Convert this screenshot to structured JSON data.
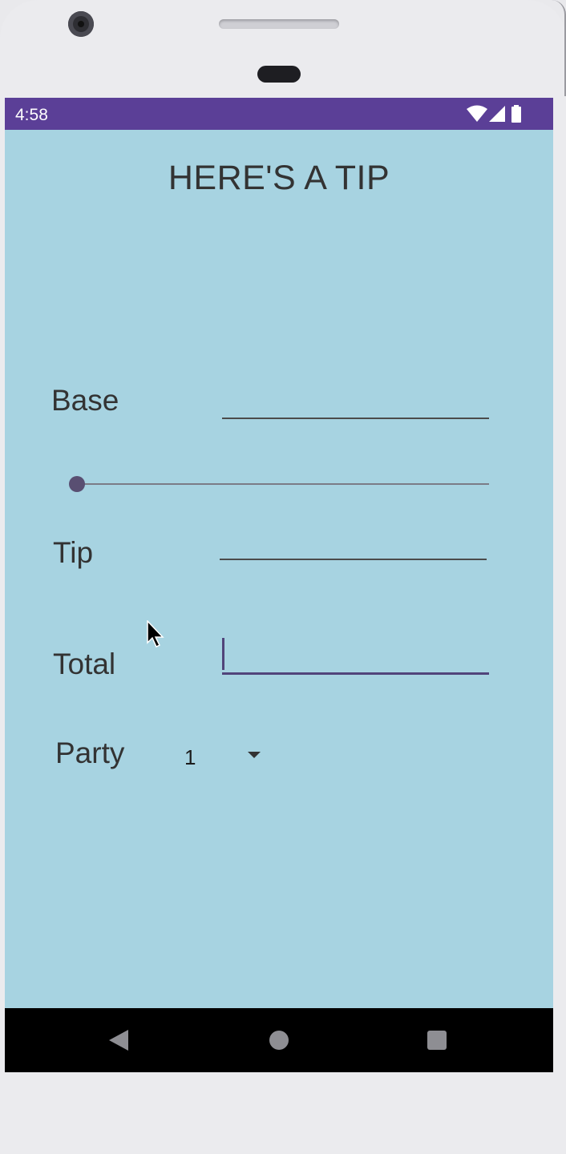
{
  "status_bar": {
    "time": "4:58",
    "icons": [
      "wifi-icon",
      "cell-signal-icon",
      "battery-icon"
    ],
    "color": "#5b3f97"
  },
  "app": {
    "title": "HERE'S A TIP",
    "background": "#a7d3e1"
  },
  "form": {
    "base_label": "Base",
    "base_value": "",
    "tip_percent_slider": 0,
    "tip_label": "Tip",
    "tip_value": "",
    "total_label": "Total",
    "total_value": "",
    "party_label": "Party",
    "party_selected": "1"
  },
  "nav_bar": {
    "buttons": [
      "back-icon",
      "home-icon",
      "recents-icon"
    ]
  }
}
